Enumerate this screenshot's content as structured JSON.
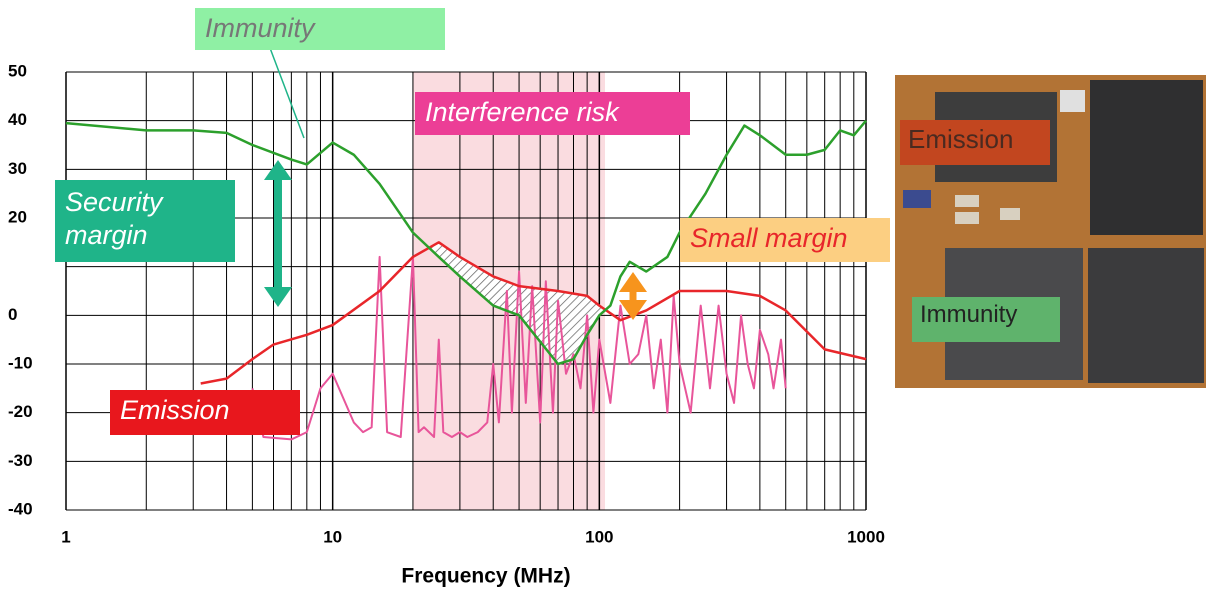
{
  "chart_data": {
    "type": "line",
    "x_log": true,
    "xlim": [
      1,
      1000
    ],
    "ylim": [
      -40,
      50
    ],
    "xticks": [
      1,
      10,
      100,
      1000
    ],
    "yticks": [
      -40,
      -30,
      -20,
      -10,
      0,
      20,
      30,
      40,
      50
    ],
    "ygrid": [
      -40,
      -30,
      -20,
      -10,
      0,
      10,
      20,
      30,
      40,
      50
    ],
    "grid": true,
    "xlabel": "Frequency (MHz)",
    "risk_band": [
      20,
      105
    ],
    "series": [
      {
        "name": "Immunity",
        "color": "#2ca02c",
        "x": [
          1,
          2,
          3,
          4,
          5,
          7,
          8,
          10,
          12,
          15,
          20,
          25,
          30,
          40,
          50,
          70,
          80,
          90,
          100,
          110,
          120,
          130,
          150,
          180,
          200,
          250,
          300,
          350,
          400,
          500,
          600,
          700,
          800,
          900,
          1000
        ],
        "values": [
          39.5,
          38,
          38,
          37.5,
          35,
          32,
          31,
          35.5,
          33,
          27,
          17,
          12,
          8,
          2,
          0,
          -10,
          -9,
          -4,
          0,
          2,
          8,
          11,
          9,
          12,
          17,
          25,
          33,
          39,
          37,
          33,
          33,
          34,
          38,
          37,
          40
        ]
      },
      {
        "name": "Emission",
        "color": "#e8262a",
        "x": [
          3.2,
          4,
          5,
          6,
          8,
          10,
          15,
          20,
          25,
          30,
          40,
          50,
          70,
          90,
          100,
          120,
          150,
          200,
          250,
          300,
          400,
          500,
          700,
          1000
        ],
        "values": [
          -14,
          -13,
          -9,
          -6,
          -4,
          -2,
          5,
          12,
          15,
          12,
          8,
          6,
          5,
          4,
          2,
          -1,
          1,
          5,
          5,
          5,
          4,
          1,
          -7,
          -9
        ]
      },
      {
        "color": "#e8559a",
        "x": [
          5,
          5.5,
          7,
          8,
          9,
          10,
          12,
          13,
          14,
          15,
          16,
          18,
          20,
          21,
          22,
          24,
          25,
          26,
          28,
          30,
          32,
          35,
          38,
          40,
          42,
          45,
          47,
          50,
          53,
          56,
          60,
          63,
          67,
          70,
          75,
          80,
          85,
          90,
          95,
          100,
          110,
          120,
          130,
          140,
          150,
          160,
          170,
          180,
          190,
          200,
          220,
          240,
          260,
          280,
          300,
          320,
          340,
          360,
          380,
          400,
          430,
          450,
          480,
          500
        ],
        "values": [
          -15,
          -25,
          -25.5,
          -24,
          -15,
          -12,
          -22,
          -24,
          -23,
          12,
          -24,
          -25,
          12,
          -24,
          -23,
          -25,
          -5,
          -24,
          -25,
          -24,
          -25,
          -24,
          -22,
          -10,
          -22,
          5,
          -20,
          9,
          -18,
          6,
          -22,
          7,
          -20,
          3,
          -12,
          -8,
          -15,
          0,
          -20,
          -5,
          -18,
          2,
          -10,
          -8,
          0,
          -15,
          -5,
          -20,
          4,
          -10,
          -20,
          2,
          -15,
          2,
          -12,
          -18,
          0,
          -10,
          -15,
          -3,
          -8,
          -15,
          -5,
          -15
        ]
      }
    ],
    "annotations": [
      "Interference risk",
      "Security margin",
      "Small margin"
    ]
  },
  "photo": {
    "labels": [
      "Emission",
      "Immunity"
    ]
  }
}
